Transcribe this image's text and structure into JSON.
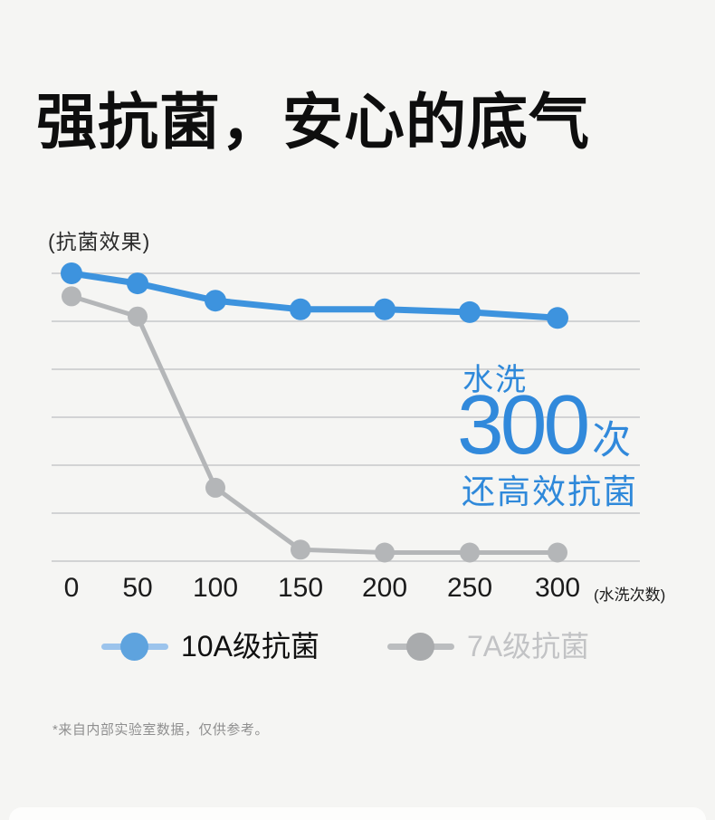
{
  "page": {
    "title": "强抗菌，安心的底气",
    "footnote": "*来自内部实验室数据，仅供参考。"
  },
  "chart_data": {
    "type": "line",
    "title": "强抗菌，安心的底气",
    "ylabel": "(抗菌效果)",
    "xlabel": "(水洗次数)",
    "categories": [
      "0",
      "50",
      "100",
      "150",
      "200",
      "250",
      "300"
    ],
    "series": [
      {
        "name": "10A级抗菌",
        "color": "#3D93DE",
        "line_width": 7,
        "dot_radius": 12,
        "values": [
          100,
          96.5,
          90.5,
          87.5,
          87.5,
          86.5,
          84.5
        ]
      },
      {
        "name": "7A级抗菌",
        "color": "#B4B6B8",
        "line_width": 5,
        "dot_radius": 11,
        "values": [
          92,
          85,
          25.5,
          4,
          3,
          3,
          3
        ]
      }
    ],
    "ylim": [
      0,
      100
    ],
    "grid": true,
    "gridline_count": 7,
    "legend_position": "bottom",
    "annotation": {
      "line1": "水洗",
      "big": "300",
      "unit": "次",
      "line2": "还高效抗菌"
    }
  },
  "legend": {
    "items": [
      {
        "label": "10A级抗菌",
        "line_color": "#9CC4EC",
        "dot_color": "#5EA3DE",
        "label_color": "#101010"
      },
      {
        "label": "7A级抗菌",
        "line_color": "#BBBDBF",
        "dot_color": "#A9ABAD",
        "label_color": "#C2C3C5"
      }
    ]
  },
  "colors": {
    "background": "#F5F5F3",
    "accent_blue": "#3089DB",
    "gridline": "#C7C8CA",
    "title_text": "#0E0E0E",
    "footnote_text": "#8F8F8F"
  }
}
